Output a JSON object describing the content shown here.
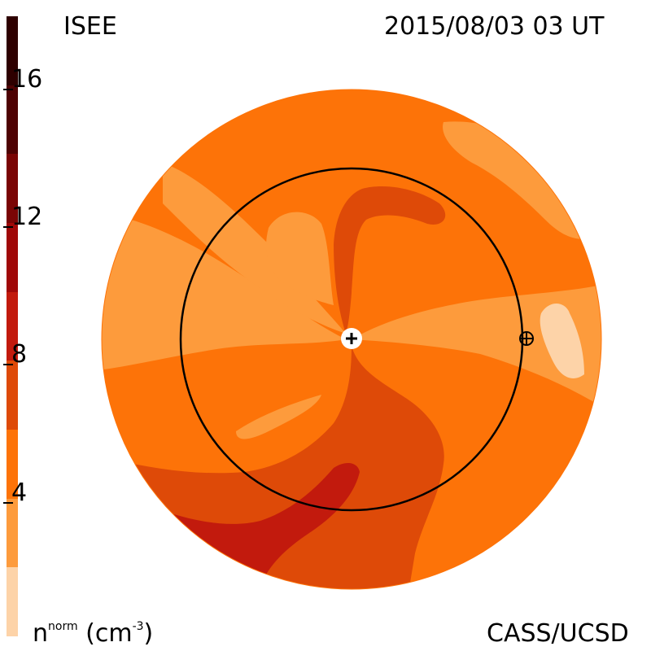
{
  "header": {
    "left_title": "ISEE",
    "right_title": "2015/08/03 03 UT"
  },
  "footer": {
    "units_main": "n",
    "units_sup": "norm",
    "units_paren": "(cm",
    "units_exp": "-3",
    "units_close": ")",
    "credit": "CASS/UCSD"
  },
  "colors": {
    "levels": [
      "#fdd3a8",
      "#fd9b3c",
      "#fd7308",
      "#de4a08",
      "#c21a0d",
      "#a00808",
      "#7a0505",
      "#4e0203",
      "#2e0000"
    ]
  },
  "chart_data": {
    "type": "heatmap",
    "title": "2015/08/03 03 UT",
    "colorbar": {
      "label": "n^norm (cm^-3)",
      "tick_labels": [
        "4",
        "8",
        "12",
        "16"
      ],
      "tick_values": [
        4,
        8,
        12,
        16
      ],
      "range": [
        0,
        18
      ],
      "levels": [
        0,
        2,
        4,
        6,
        8,
        10,
        12,
        14,
        16,
        18
      ]
    },
    "markers": [
      {
        "name": "sun",
        "symbol": "+"
      },
      {
        "name": "earth",
        "symbol": "circled-plus"
      }
    ]
  }
}
